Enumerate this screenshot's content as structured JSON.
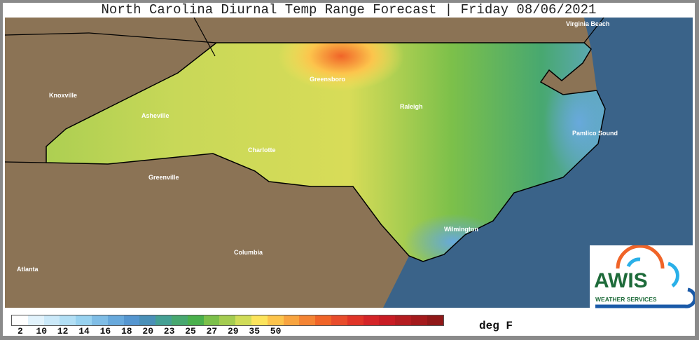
{
  "title": "North Carolina Diurnal Temp Range Forecast | Friday 08/06/2021",
  "cities": [
    {
      "name": "Virginia Beach"
    },
    {
      "name": "Knoxville"
    },
    {
      "name": "Greensboro"
    },
    {
      "name": "Raleigh"
    },
    {
      "name": "Asheville"
    },
    {
      "name": "Charlotte"
    },
    {
      "name": "Pamlico Sound"
    },
    {
      "name": "Greenville"
    },
    {
      "name": "Wilmington"
    },
    {
      "name": "Columbia"
    },
    {
      "name": "Atlanta"
    }
  ],
  "legend": {
    "unit": "deg F",
    "colors": [
      "#ffffff",
      "#e2f3fc",
      "#cbe9f9",
      "#b2dff5",
      "#98d2f0",
      "#7fbde6",
      "#68a9dc",
      "#5596d0",
      "#4a90b8",
      "#45a094",
      "#48a870",
      "#4ab04c",
      "#7cc04a",
      "#a4cc50",
      "#d0dc58",
      "#fce45c",
      "#fcc44c",
      "#f8a440",
      "#f48434",
      "#f06428",
      "#e84c2c",
      "#e03428",
      "#d42428",
      "#c81c24",
      "#b41c20",
      "#a41a1c",
      "#901818"
    ],
    "labels": [
      "2",
      "10",
      "12",
      "14",
      "16",
      "18",
      "20",
      "23",
      "25",
      "27",
      "29",
      "35",
      "50"
    ]
  },
  "colors": {
    "land": "#8b7355",
    "ocean": "#3a6389"
  },
  "logo": {
    "name": "AWIS",
    "subtitle": "WEATHER SERVICES"
  }
}
